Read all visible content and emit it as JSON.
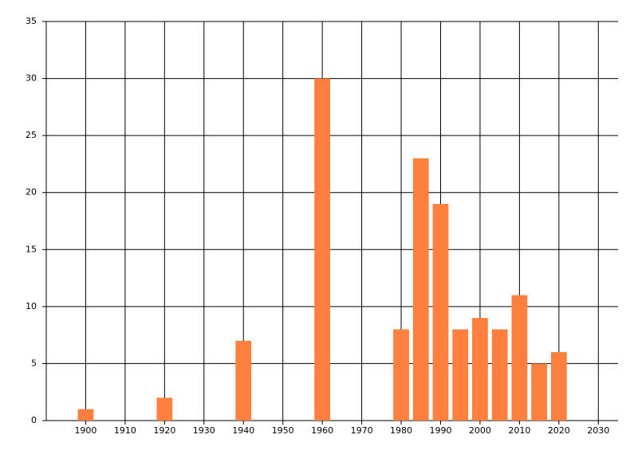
{
  "chart_data": {
    "type": "bar",
    "x": [
      1900,
      1920,
      1940,
      1960,
      1980,
      1985,
      1990,
      1995,
      2000,
      2005,
      2010,
      2015,
      2020
    ],
    "values": [
      1,
      2,
      7,
      30,
      8,
      23,
      19,
      8,
      9,
      8,
      11,
      5,
      6
    ],
    "color": "#ff7f3f",
    "xlim": [
      1890,
      2035
    ],
    "xticks": [
      1900,
      1910,
      1920,
      1930,
      1940,
      1950,
      1960,
      1970,
      1980,
      1990,
      2000,
      2010,
      2020,
      2030
    ],
    "ylim": [
      0,
      35
    ],
    "yticks": [
      0,
      5,
      10,
      15,
      20,
      25,
      30,
      35
    ],
    "grid": true
  }
}
